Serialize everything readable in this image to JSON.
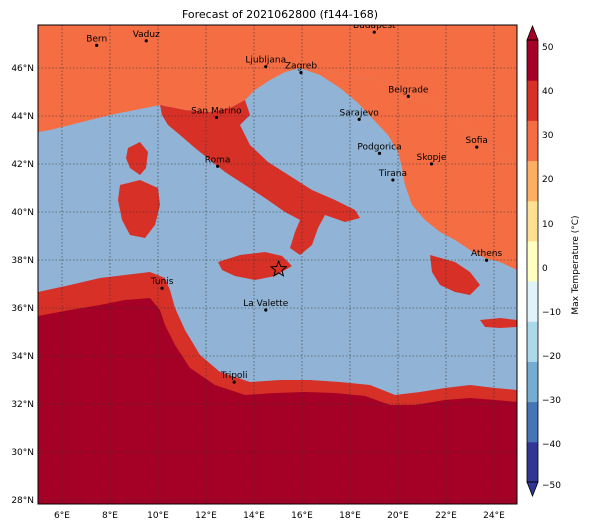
{
  "title": "Forecast of 2021062800 (f144-168)",
  "colorbar": {
    "label": "Max Temperature (°C)",
    "ticks": [
      "50",
      "40",
      "30",
      "20",
      "10",
      "0",
      "−10",
      "−20",
      "−30",
      "−40",
      "−50"
    ],
    "colors": [
      "#313695",
      "#4575b4",
      "#74add1",
      "#abd9e9",
      "#e0f3f8",
      "#ffffbf",
      "#fee090",
      "#fdae61",
      "#f46d43",
      "#d73027",
      "#a50026"
    ]
  },
  "map": {
    "lon_range": [
      5,
      25
    ],
    "lat_range": [
      27.8,
      47.8
    ],
    "lon_labels": [
      "6°E",
      "8°E",
      "10°E",
      "12°E",
      "14°E",
      "16°E",
      "18°E",
      "20°E",
      "22°E",
      "24°E"
    ],
    "lat_labels": [
      "46°N",
      "44°N",
      "42°N",
      "40°N",
      "38°N",
      "36°N",
      "34°N",
      "32°N",
      "30°N",
      "28°N"
    ],
    "sea_color": "#91b4d6",
    "cities": [
      {
        "name": "Bern",
        "lon": 7.45,
        "lat": 46.95
      },
      {
        "name": "Vaduz",
        "lon": 9.52,
        "lat": 47.14
      },
      {
        "name": "Budapest",
        "lon": 19.04,
        "lat": 47.5
      },
      {
        "name": "Ljubljana",
        "lon": 14.51,
        "lat": 46.06
      },
      {
        "name": "Zagreb",
        "lon": 15.98,
        "lat": 45.81
      },
      {
        "name": "San Marino",
        "lon": 12.45,
        "lat": 43.94
      },
      {
        "name": "Sarajevo",
        "lon": 18.41,
        "lat": 43.86
      },
      {
        "name": "Belgrade",
        "lon": 20.46,
        "lat": 44.82
      },
      {
        "name": "Roma",
        "lon": 12.5,
        "lat": 41.9
      },
      {
        "name": "Podgorica",
        "lon": 19.26,
        "lat": 42.44
      },
      {
        "name": "Skopje",
        "lon": 21.43,
        "lat": 42.0
      },
      {
        "name": "Sofia",
        "lon": 23.32,
        "lat": 42.7
      },
      {
        "name": "Tirana",
        "lon": 19.82,
        "lat": 41.33
      },
      {
        "name": "Athens",
        "lon": 23.73,
        "lat": 37.98
      },
      {
        "name": "Tunis",
        "lon": 10.18,
        "lat": 36.81
      },
      {
        "name": "La Valette",
        "lon": 14.51,
        "lat": 35.9
      },
      {
        "name": "Tripoli",
        "lon": 13.19,
        "lat": 32.89
      }
    ],
    "marker": {
      "name": "star",
      "lon": 15.05,
      "lat": 37.6
    }
  }
}
